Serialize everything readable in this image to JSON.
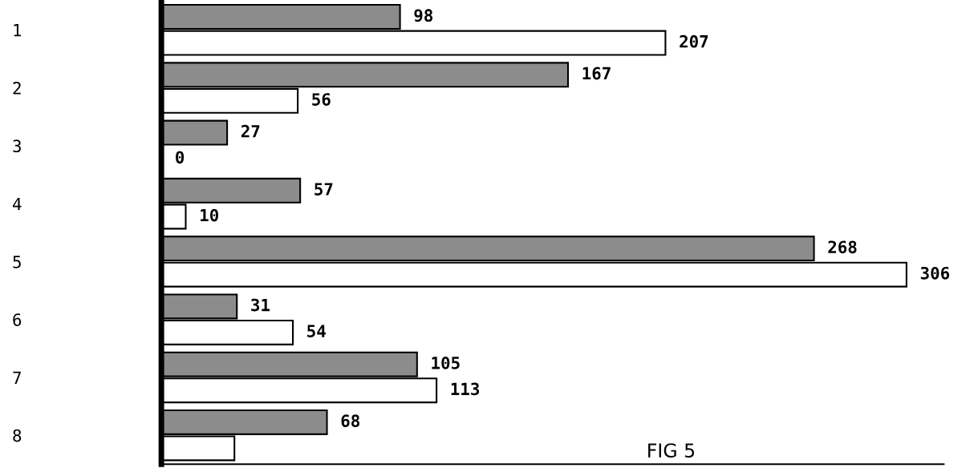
{
  "chart_data": {
    "type": "bar",
    "orientation": "horizontal",
    "categories": [
      "1",
      "2",
      "3",
      "4",
      "5",
      "6",
      "7",
      "8"
    ],
    "series": [
      {
        "color": "#8c8c8c",
        "values": [
          98,
          167,
          27,
          57,
          268,
          31,
          105,
          68
        ],
        "value_labels": [
          "98",
          "167",
          "27",
          "57",
          "268",
          "31",
          "105",
          "68"
        ]
      },
      {
        "color": "#ffffff",
        "values": [
          207,
          56,
          0,
          10,
          306,
          54,
          113,
          30
        ],
        "value_labels": [
          "207",
          "56",
          "0",
          "10",
          "306",
          "54",
          "113",
          null
        ]
      }
    ],
    "annotations": [
      "FIG 5"
    ],
    "legend": false,
    "grid": false,
    "tick_labels": "y"
  }
}
